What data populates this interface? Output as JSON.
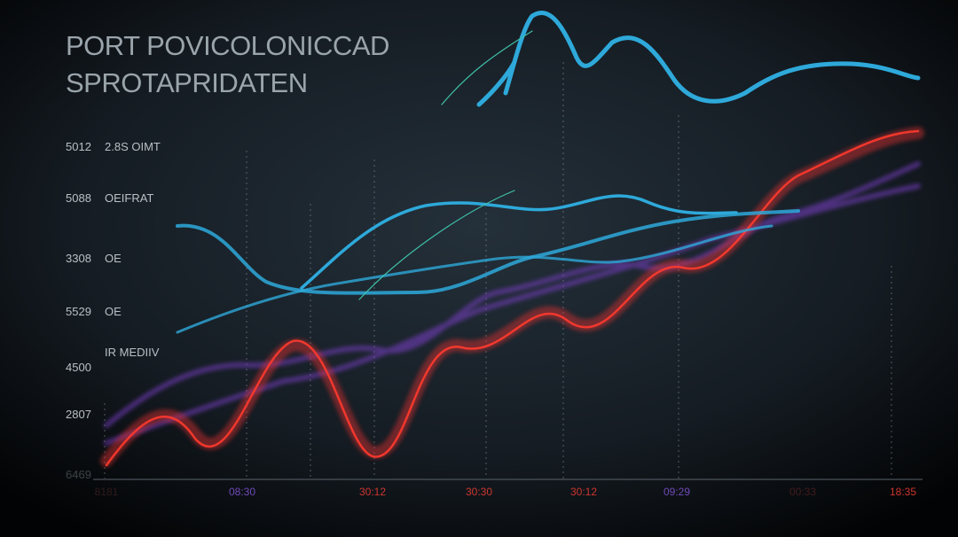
{
  "header": {
    "title": [
      "PORT POVICOLONICCAD",
      "SPROTAPRIDATEN"
    ]
  },
  "side_numbers": [
    "5012",
    "5088",
    "3308",
    "5529",
    "4500",
    "2807",
    "6469"
  ],
  "side_notes": [
    "2.8S OIMT",
    "OEIFRAT",
    "OE",
    "OE",
    "IR MEDIIV"
  ],
  "x_labels": [
    "8181",
    "08:30",
    "30:12",
    "30:30",
    "30:12",
    "09:29",
    "00:33",
    "18:35"
  ]
}
